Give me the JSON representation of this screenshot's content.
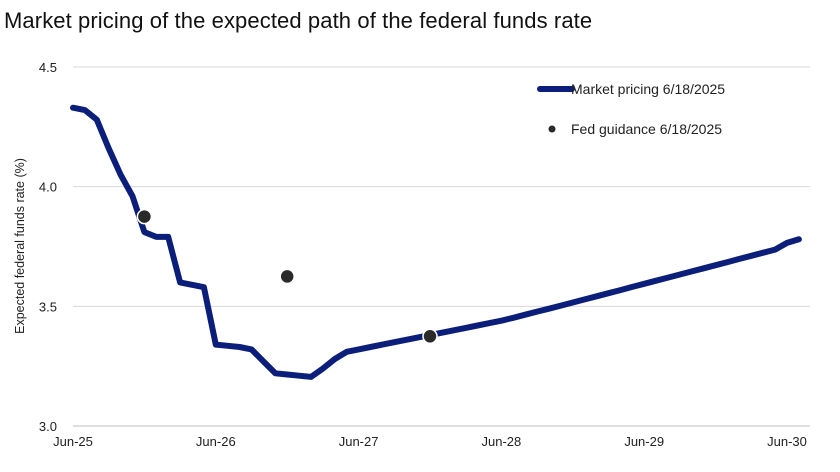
{
  "chart_data": {
    "type": "line",
    "title": "Market pricing of the expected path of the federal funds rate",
    "ylabel": "Expected federal funds rate (%)",
    "xlabel": "",
    "ylim": [
      3.0,
      4.5
    ],
    "xlim": [
      0,
      61
    ],
    "y_ticks": [
      "3.0",
      "3.5",
      "4.0",
      "4.5"
    ],
    "y_tick_values": [
      3.0,
      3.5,
      4.0,
      4.5
    ],
    "x_ticks": [
      "Jun-25",
      "Jun-26",
      "Jun-27",
      "Jun-28",
      "Jun-29",
      "Jun-30"
    ],
    "x_tick_values": [
      0,
      12,
      24,
      36,
      48,
      60
    ],
    "grid": "horizontal",
    "legend_position": "top-right",
    "colors": {
      "line": "#0b1f7a",
      "dots": "#2a2a2a",
      "grid": "#d9d9d9"
    },
    "series": [
      {
        "name": "Market pricing 6/18/2025",
        "type": "line",
        "x": [
          0,
          1,
          2,
          3,
          4,
          5,
          6,
          7,
          8,
          9,
          10,
          11,
          12,
          13,
          14,
          15,
          16,
          17,
          18,
          19,
          20,
          21,
          22,
          23,
          24,
          25,
          26,
          27,
          28,
          29,
          30,
          31,
          32,
          33,
          34,
          35,
          36,
          37,
          38,
          39,
          40,
          41,
          42,
          43,
          44,
          45,
          46,
          47,
          48,
          49,
          50,
          51,
          52,
          53,
          54,
          55,
          56,
          57,
          58,
          59,
          60,
          61
        ],
        "values": [
          4.33,
          4.32,
          4.28,
          4.16,
          4.05,
          3.96,
          3.81,
          3.79,
          3.79,
          3.6,
          3.59,
          3.58,
          3.34,
          3.335,
          3.33,
          3.32,
          3.27,
          3.22,
          3.215,
          3.21,
          3.205,
          3.24,
          3.28,
          3.31,
          3.32,
          3.33,
          3.34,
          3.35,
          3.36,
          3.37,
          3.38,
          3.39,
          3.4,
          3.41,
          3.42,
          3.43,
          3.44,
          3.452,
          3.465,
          3.478,
          3.49,
          3.503,
          3.516,
          3.529,
          3.542,
          3.555,
          3.568,
          3.581,
          3.594,
          3.607,
          3.62,
          3.633,
          3.646,
          3.659,
          3.672,
          3.685,
          3.698,
          3.711,
          3.724,
          3.737,
          3.765,
          3.78
        ]
      },
      {
        "name": "Fed guidance 6/18/2025",
        "type": "scatter",
        "x": [
          6,
          18,
          30
        ],
        "values": [
          3.875,
          3.625,
          3.375
        ]
      }
    ]
  }
}
